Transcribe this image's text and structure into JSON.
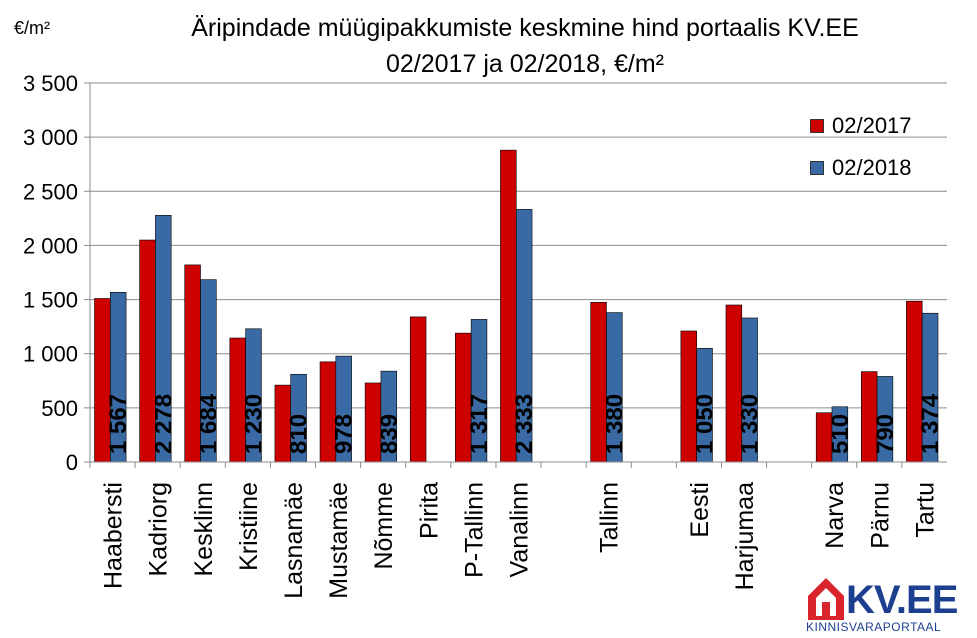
{
  "chart_data": {
    "type": "bar",
    "title": "Äripindade müügipakkumiste keskmine hind portaalis KV.EE",
    "subtitle": "02/2017 ja 02/2018, €/m²",
    "ylabel": "€/m²",
    "ylim": [
      0,
      3500
    ],
    "yticks": [
      "0",
      "500",
      "1 000",
      "1 500",
      "2 000",
      "2 500",
      "3 000",
      "3 500"
    ],
    "grid": true,
    "legend_position": "top-right",
    "categories": [
      "Haabersti",
      "Kadriorg",
      "Kesklinn",
      "Kristiine",
      "Lasnamäe",
      "Mustamäe",
      "Nõmme",
      "Pirita",
      "P-Tallinn",
      "Vanalinn",
      "",
      "Tallinn",
      "",
      "Eesti",
      "Harjumaa",
      "",
      "Narva",
      "Pärnu",
      "Tartu"
    ],
    "series": [
      {
        "name": "02/2017",
        "color": "#cc0000",
        "values": [
          1510,
          2050,
          1820,
          1145,
          710,
          925,
          730,
          1340,
          1190,
          2880,
          null,
          1475,
          null,
          1210,
          1450,
          null,
          455,
          835,
          1485
        ]
      },
      {
        "name": "02/2018",
        "color": "#3a6aa3",
        "values": [
          1567,
          2278,
          1684,
          1230,
          810,
          978,
          839,
          null,
          1317,
          2333,
          null,
          1380,
          null,
          1050,
          1330,
          null,
          510,
          790,
          1374
        ]
      }
    ],
    "data_labels": [
      "1 567",
      "2 278",
      "1 684",
      "1 230",
      "810",
      "978",
      "839",
      "",
      "1 317",
      "2 333",
      "",
      "1 380",
      "",
      "1 050",
      "1 330",
      "",
      "510",
      "790",
      "1 374"
    ]
  },
  "logo": {
    "text": "KV.EE",
    "subtitle": "KINNISVARAPORTAAL",
    "color": "#1d3f8f"
  }
}
